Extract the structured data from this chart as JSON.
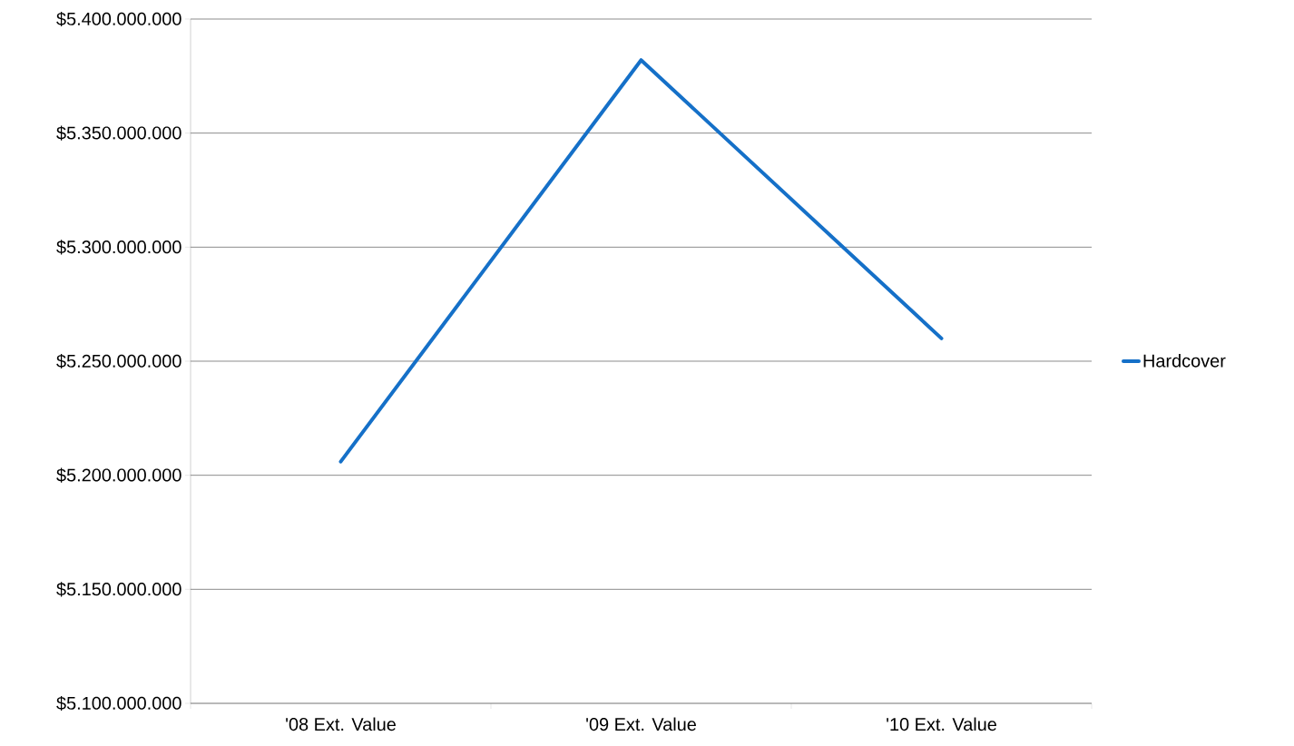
{
  "chart_data": {
    "type": "line",
    "categories": [
      "'08 Ext. Value",
      "'09 Ext. Value",
      "'10 Ext. Value"
    ],
    "series": [
      {
        "name": "Hardcover",
        "color": "#1570c8",
        "values": [
          5206000000,
          5382000000,
          5260000000
        ]
      }
    ],
    "ylim": [
      5100000000,
      5400000000
    ],
    "yticks": [
      {
        "value": 5100000000,
        "label": "$5.100.000.000"
      },
      {
        "value": 5150000000,
        "label": "$5.150.000.000"
      },
      {
        "value": 5200000000,
        "label": "$5.200.000.000"
      },
      {
        "value": 5250000000,
        "label": "$5.250.000.000"
      },
      {
        "value": 5300000000,
        "label": "$5.300.000.000"
      },
      {
        "value": 5350000000,
        "label": "$5.350.000.000"
      },
      {
        "value": 5400000000,
        "label": "$5.400.000.000"
      }
    ],
    "grid": "y",
    "legend": "right",
    "marker": "none",
    "line_style": "solid"
  }
}
